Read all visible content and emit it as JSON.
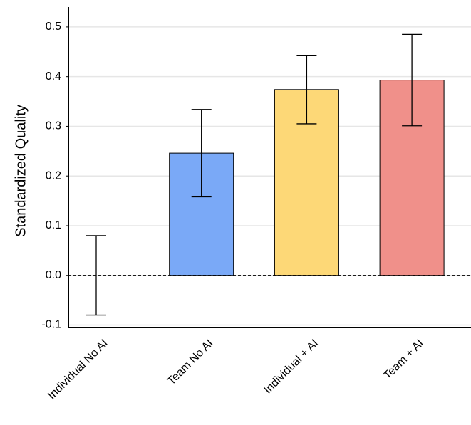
{
  "chart_data": {
    "type": "bar",
    "y_label": "Standardized Quality",
    "categories": [
      "Individual No AI",
      "Team No AI",
      "Individual + AI",
      "Team + AI"
    ],
    "values": [
      0,
      0.246,
      0.374,
      0.393
    ],
    "errors": [
      0.08,
      0.088,
      0.069,
      0.092
    ],
    "colors": [
      "#a0a0a0",
      "#7aa9f7",
      "#fdd877",
      "#f0908a"
    ],
    "ylim": [
      -0.105,
      0.54
    ],
    "yticks": [
      -0.1,
      {
        "value": 0,
        "label": "0.0"
      },
      0.1,
      0.2,
      0.3,
      0.4,
      0.5
    ],
    "grid": true,
    "zero_line": true
  }
}
